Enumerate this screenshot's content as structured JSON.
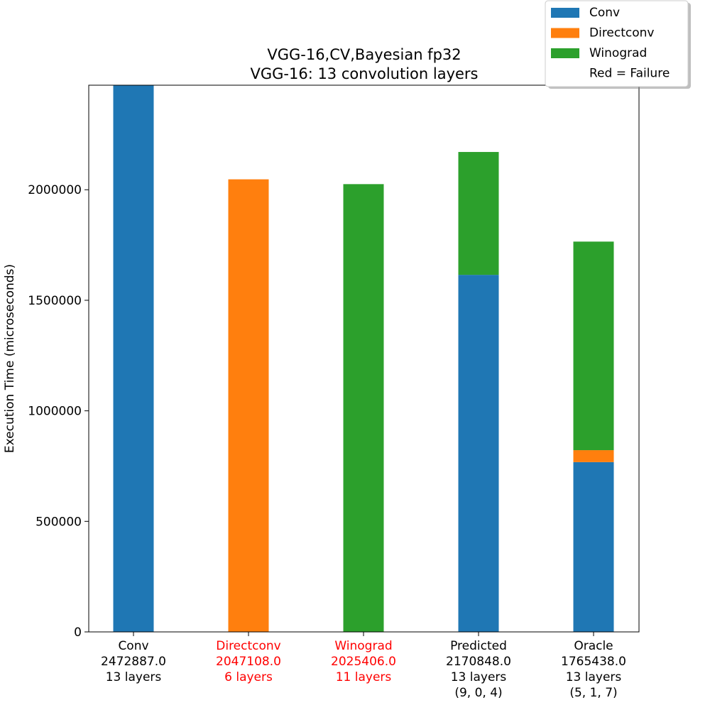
{
  "chart_data": {
    "type": "bar",
    "stacked": true,
    "title": "VGG-16,CV,Bayesian fp32",
    "subtitle": "VGG-16: 13 convolution layers",
    "xlabel": "",
    "ylabel": "Execution Time (microseconds)",
    "ylim": [
      0,
      2472887
    ],
    "yticks": [
      0,
      500000,
      1000000,
      1500000,
      2000000
    ],
    "grid": false,
    "legend_position": "top-right",
    "categories": [
      {
        "lines": [
          "Conv",
          "2472887.0",
          "13 layers"
        ],
        "failure": false
      },
      {
        "lines": [
          "Directconv",
          "2047108.0",
          "6 layers"
        ],
        "failure": true
      },
      {
        "lines": [
          "Winograd",
          "2025406.0",
          "11 layers"
        ],
        "failure": true
      },
      {
        "lines": [
          "Predicted",
          "2170848.0",
          "13 layers",
          "(9, 0, 4)"
        ],
        "failure": false
      },
      {
        "lines": [
          "Oracle",
          "1765438.0",
          "13 layers",
          "(5, 1, 7)"
        ],
        "failure": false
      }
    ],
    "series": [
      {
        "name": "Conv",
        "color": "#1f77b4",
        "values": [
          2472887,
          0,
          0,
          1615000,
          768000
        ]
      },
      {
        "name": "Directconv",
        "color": "#ff7f0e",
        "values": [
          0,
          2047108,
          0,
          0,
          54000
        ]
      },
      {
        "name": "Winograd",
        "color": "#2ca02c",
        "values": [
          0,
          0,
          2025406,
          555848,
          943438
        ]
      }
    ],
    "legend_note": "Red = Failure",
    "failure_color": "#ff0000"
  }
}
